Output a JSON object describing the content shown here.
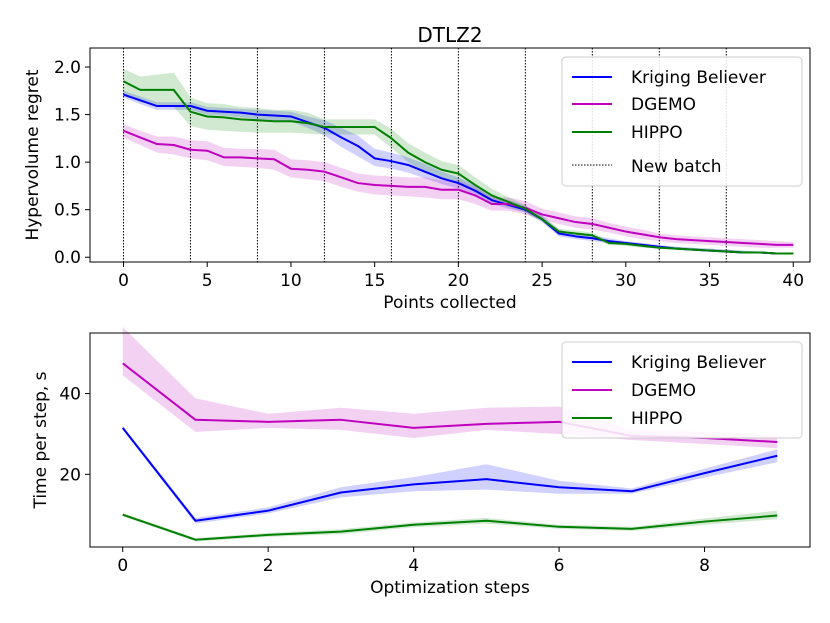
{
  "chart_data": [
    {
      "type": "line",
      "title": "DTLZ2",
      "xlabel": "Points collected",
      "ylabel": "Hypervolume regret",
      "xlim": [
        -2,
        41
      ],
      "ylim": [
        -0.05,
        2.2
      ],
      "xticks": [
        0,
        5,
        10,
        15,
        20,
        25,
        30,
        35,
        40
      ],
      "xtick_labels": [
        "0",
        "5",
        "10",
        "15",
        "20",
        "25",
        "30",
        "35",
        "40"
      ],
      "yticks": [
        0.0,
        0.5,
        1.0,
        1.5,
        2.0
      ],
      "ytick_labels": [
        "0.0",
        "0.5",
        "1.0",
        "1.5",
        "2.0"
      ],
      "batch_lines": [
        0,
        4,
        8,
        12,
        16,
        20,
        24,
        28,
        32,
        36
      ],
      "legend": {
        "placement": "upper-right",
        "batch_label": "New batch"
      },
      "series": [
        {
          "name": "Kriging Believer",
          "color": "#0000ff",
          "x": [
            0,
            1,
            2,
            3,
            4,
            5,
            6,
            7,
            8,
            9,
            10,
            11,
            12,
            13,
            14,
            15,
            16,
            17,
            18,
            19,
            20,
            21,
            22,
            23,
            24,
            25,
            26,
            27,
            28,
            29,
            30,
            31,
            32,
            33,
            34,
            35,
            36,
            37,
            38,
            39,
            40
          ],
          "values": [
            1.71,
            1.65,
            1.59,
            1.59,
            1.59,
            1.54,
            1.53,
            1.52,
            1.5,
            1.49,
            1.48,
            1.42,
            1.36,
            1.26,
            1.17,
            1.04,
            1.01,
            0.97,
            0.9,
            0.83,
            0.78,
            0.7,
            0.6,
            0.55,
            0.5,
            0.4,
            0.25,
            0.22,
            0.2,
            0.17,
            0.15,
            0.13,
            0.11,
            0.09,
            0.08,
            0.07,
            0.06,
            0.05,
            0.05,
            0.04,
            0.04
          ],
          "lower": [
            1.68,
            1.61,
            1.55,
            1.55,
            1.55,
            1.5,
            1.49,
            1.47,
            1.45,
            1.44,
            1.43,
            1.36,
            1.28,
            1.16,
            1.06,
            0.96,
            0.93,
            0.89,
            0.83,
            0.77,
            0.72,
            0.64,
            0.56,
            0.51,
            0.47,
            0.37,
            0.22,
            0.19,
            0.17,
            0.15,
            0.13,
            0.11,
            0.09,
            0.08,
            0.07,
            0.06,
            0.05,
            0.04,
            0.04,
            0.03,
            0.03
          ],
          "upper": [
            1.75,
            1.69,
            1.63,
            1.63,
            1.63,
            1.58,
            1.57,
            1.56,
            1.55,
            1.54,
            1.53,
            1.48,
            1.44,
            1.36,
            1.28,
            1.14,
            1.1,
            1.05,
            0.98,
            0.9,
            0.84,
            0.76,
            0.65,
            0.6,
            0.54,
            0.44,
            0.29,
            0.25,
            0.23,
            0.2,
            0.17,
            0.15,
            0.13,
            0.11,
            0.1,
            0.09,
            0.08,
            0.07,
            0.06,
            0.05,
            0.05
          ]
        },
        {
          "name": "DGEMO",
          "color": "#bf00bf",
          "x": [
            0,
            1,
            2,
            3,
            4,
            5,
            6,
            7,
            8,
            9,
            10,
            11,
            12,
            13,
            14,
            15,
            16,
            17,
            18,
            19,
            20,
            21,
            22,
            23,
            24,
            25,
            26,
            27,
            28,
            29,
            30,
            31,
            32,
            33,
            34,
            35,
            36,
            37,
            38,
            39,
            40
          ],
          "values": [
            1.33,
            1.26,
            1.19,
            1.18,
            1.13,
            1.12,
            1.05,
            1.05,
            1.04,
            1.03,
            0.93,
            0.92,
            0.9,
            0.84,
            0.78,
            0.76,
            0.75,
            0.74,
            0.74,
            0.71,
            0.71,
            0.65,
            0.56,
            0.56,
            0.52,
            0.45,
            0.41,
            0.37,
            0.35,
            0.31,
            0.27,
            0.24,
            0.21,
            0.19,
            0.18,
            0.17,
            0.16,
            0.15,
            0.14,
            0.13,
            0.13
          ],
          "lower": [
            1.26,
            1.18,
            1.1,
            1.08,
            1.04,
            1.02,
            0.96,
            0.95,
            0.94,
            0.92,
            0.84,
            0.82,
            0.8,
            0.74,
            0.69,
            0.66,
            0.65,
            0.64,
            0.63,
            0.61,
            0.61,
            0.56,
            0.49,
            0.49,
            0.45,
            0.39,
            0.35,
            0.31,
            0.29,
            0.26,
            0.22,
            0.19,
            0.17,
            0.15,
            0.14,
            0.13,
            0.12,
            0.11,
            0.1,
            0.1,
            0.1
          ],
          "upper": [
            1.4,
            1.33,
            1.27,
            1.27,
            1.23,
            1.22,
            1.15,
            1.14,
            1.14,
            1.13,
            1.03,
            1.02,
            1.0,
            0.94,
            0.88,
            0.86,
            0.85,
            0.84,
            0.84,
            0.81,
            0.81,
            0.74,
            0.63,
            0.63,
            0.59,
            0.51,
            0.47,
            0.43,
            0.41,
            0.36,
            0.32,
            0.29,
            0.25,
            0.23,
            0.22,
            0.21,
            0.2,
            0.19,
            0.18,
            0.17,
            0.16
          ]
        },
        {
          "name": "HIPPO",
          "color": "#008000",
          "x": [
            0,
            1,
            2,
            3,
            4,
            5,
            6,
            7,
            8,
            9,
            10,
            11,
            12,
            13,
            14,
            15,
            16,
            17,
            18,
            19,
            20,
            21,
            22,
            23,
            24,
            25,
            26,
            27,
            28,
            29,
            30,
            31,
            32,
            33,
            34,
            35,
            36,
            37,
            38,
            39,
            40
          ],
          "values": [
            1.85,
            1.76,
            1.76,
            1.76,
            1.53,
            1.48,
            1.47,
            1.45,
            1.44,
            1.43,
            1.43,
            1.41,
            1.37,
            1.37,
            1.37,
            1.37,
            1.25,
            1.1,
            1.0,
            0.92,
            0.88,
            0.76,
            0.65,
            0.58,
            0.51,
            0.4,
            0.27,
            0.25,
            0.23,
            0.15,
            0.14,
            0.12,
            0.1,
            0.09,
            0.08,
            0.07,
            0.06,
            0.05,
            0.05,
            0.04,
            0.04
          ],
          "lower": [
            1.72,
            1.63,
            1.6,
            1.58,
            1.38,
            1.34,
            1.33,
            1.32,
            1.31,
            1.31,
            1.31,
            1.3,
            1.29,
            1.29,
            1.29,
            1.29,
            1.15,
            1.0,
            0.9,
            0.83,
            0.79,
            0.68,
            0.58,
            0.53,
            0.47,
            0.37,
            0.24,
            0.22,
            0.2,
            0.13,
            0.12,
            0.1,
            0.09,
            0.08,
            0.07,
            0.06,
            0.05,
            0.04,
            0.04,
            0.03,
            0.03
          ],
          "upper": [
            1.98,
            1.9,
            1.92,
            1.94,
            1.68,
            1.62,
            1.61,
            1.58,
            1.57,
            1.55,
            1.55,
            1.52,
            1.45,
            1.45,
            1.45,
            1.45,
            1.35,
            1.2,
            1.1,
            1.01,
            0.97,
            0.84,
            0.72,
            0.63,
            0.55,
            0.43,
            0.3,
            0.28,
            0.26,
            0.17,
            0.16,
            0.14,
            0.12,
            0.11,
            0.1,
            0.09,
            0.08,
            0.07,
            0.06,
            0.05,
            0.05
          ]
        }
      ]
    },
    {
      "type": "line",
      "title": "",
      "xlabel": "Optimization steps",
      "ylabel": "Time per step, s",
      "xlim": [
        -0.45,
        9.45
      ],
      "ylim": [
        2,
        55
      ],
      "xticks": [
        0,
        2,
        4,
        6,
        8
      ],
      "xtick_labels": [
        "0",
        "2",
        "4",
        "6",
        "8"
      ],
      "yticks": [
        20,
        40
      ],
      "ytick_labels": [
        "20",
        "40"
      ],
      "legend": {
        "placement": "upper-right"
      },
      "series": [
        {
          "name": "Kriging Believer",
          "color": "#0000ff",
          "x": [
            0,
            1,
            2,
            3,
            4,
            5,
            6,
            7,
            8,
            9
          ],
          "values": [
            31.5,
            8.5,
            11.0,
            15.5,
            17.5,
            18.8,
            16.8,
            15.8,
            20.3,
            24.6
          ],
          "lower": [
            31.0,
            7.8,
            10.3,
            14.3,
            15.8,
            16.2,
            15.2,
            15.2,
            19.2,
            23.0
          ],
          "upper": [
            32.0,
            9.2,
            11.8,
            16.8,
            19.3,
            22.5,
            18.4,
            16.5,
            21.4,
            26.2
          ]
        },
        {
          "name": "DGEMO",
          "color": "#bf00bf",
          "x": [
            0,
            1,
            2,
            3,
            4,
            5,
            6,
            7,
            8,
            9
          ],
          "values": [
            47.5,
            33.5,
            33.0,
            33.5,
            31.5,
            32.5,
            33.0,
            29.5,
            29.0,
            28.0
          ],
          "lower": [
            44.5,
            30.5,
            31.5,
            31.0,
            29.0,
            31.0,
            30.0,
            28.5,
            27.5,
            26.5
          ],
          "upper": [
            56.5,
            38.8,
            35.0,
            36.5,
            35.0,
            36.5,
            36.8,
            31.0,
            30.5,
            29.5
          ]
        },
        {
          "name": "HIPPO",
          "color": "#008000",
          "x": [
            0,
            1,
            2,
            3,
            4,
            5,
            6,
            7,
            8,
            9
          ],
          "values": [
            10.0,
            3.8,
            5.0,
            5.8,
            7.5,
            8.5,
            7.0,
            6.5,
            8.3,
            9.8
          ],
          "lower": [
            9.6,
            3.4,
            4.5,
            5.2,
            6.9,
            7.8,
            6.5,
            6.0,
            7.5,
            8.9
          ],
          "upper": [
            10.4,
            4.2,
            5.5,
            6.4,
            8.1,
            9.2,
            7.5,
            7.0,
            9.1,
            11.0
          ]
        }
      ]
    }
  ]
}
